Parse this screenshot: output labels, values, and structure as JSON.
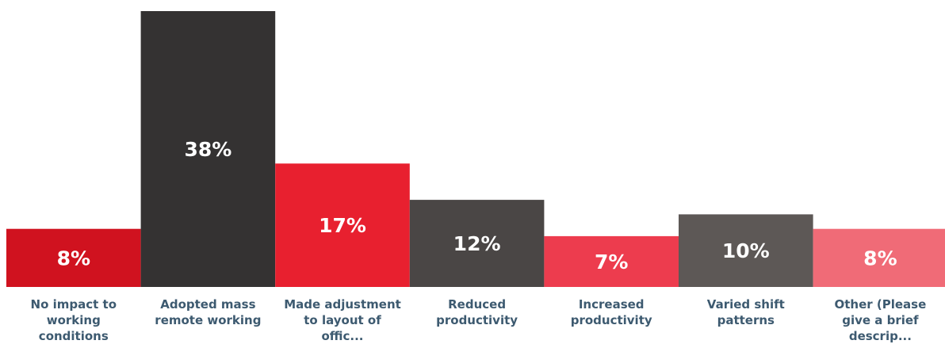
{
  "chart_data": {
    "type": "bar",
    "categories": [
      "No impact to\nworking\nconditions",
      "Adopted mass\nremote working",
      "Made adjustment\nto layout of\noffic...",
      "Reduced\nproductivity",
      "Increased\nproductivity",
      "Varied shift\npatterns",
      "Other (Please\ngive a brief\ndescrip..."
    ],
    "values": [
      8,
      38,
      17,
      12,
      7,
      10,
      8
    ],
    "value_labels": [
      "8%",
      "38%",
      "17%",
      "12%",
      "7%",
      "10%",
      "8%"
    ],
    "colors": [
      "#d0121f",
      "#343232",
      "#e8202f",
      "#4a4645",
      "#ed3c4e",
      "#5d5856",
      "#f06b77"
    ],
    "title": "",
    "xlabel": "",
    "ylabel": "",
    "ylim": [
      0,
      38
    ],
    "grid": false,
    "legend": "none"
  }
}
